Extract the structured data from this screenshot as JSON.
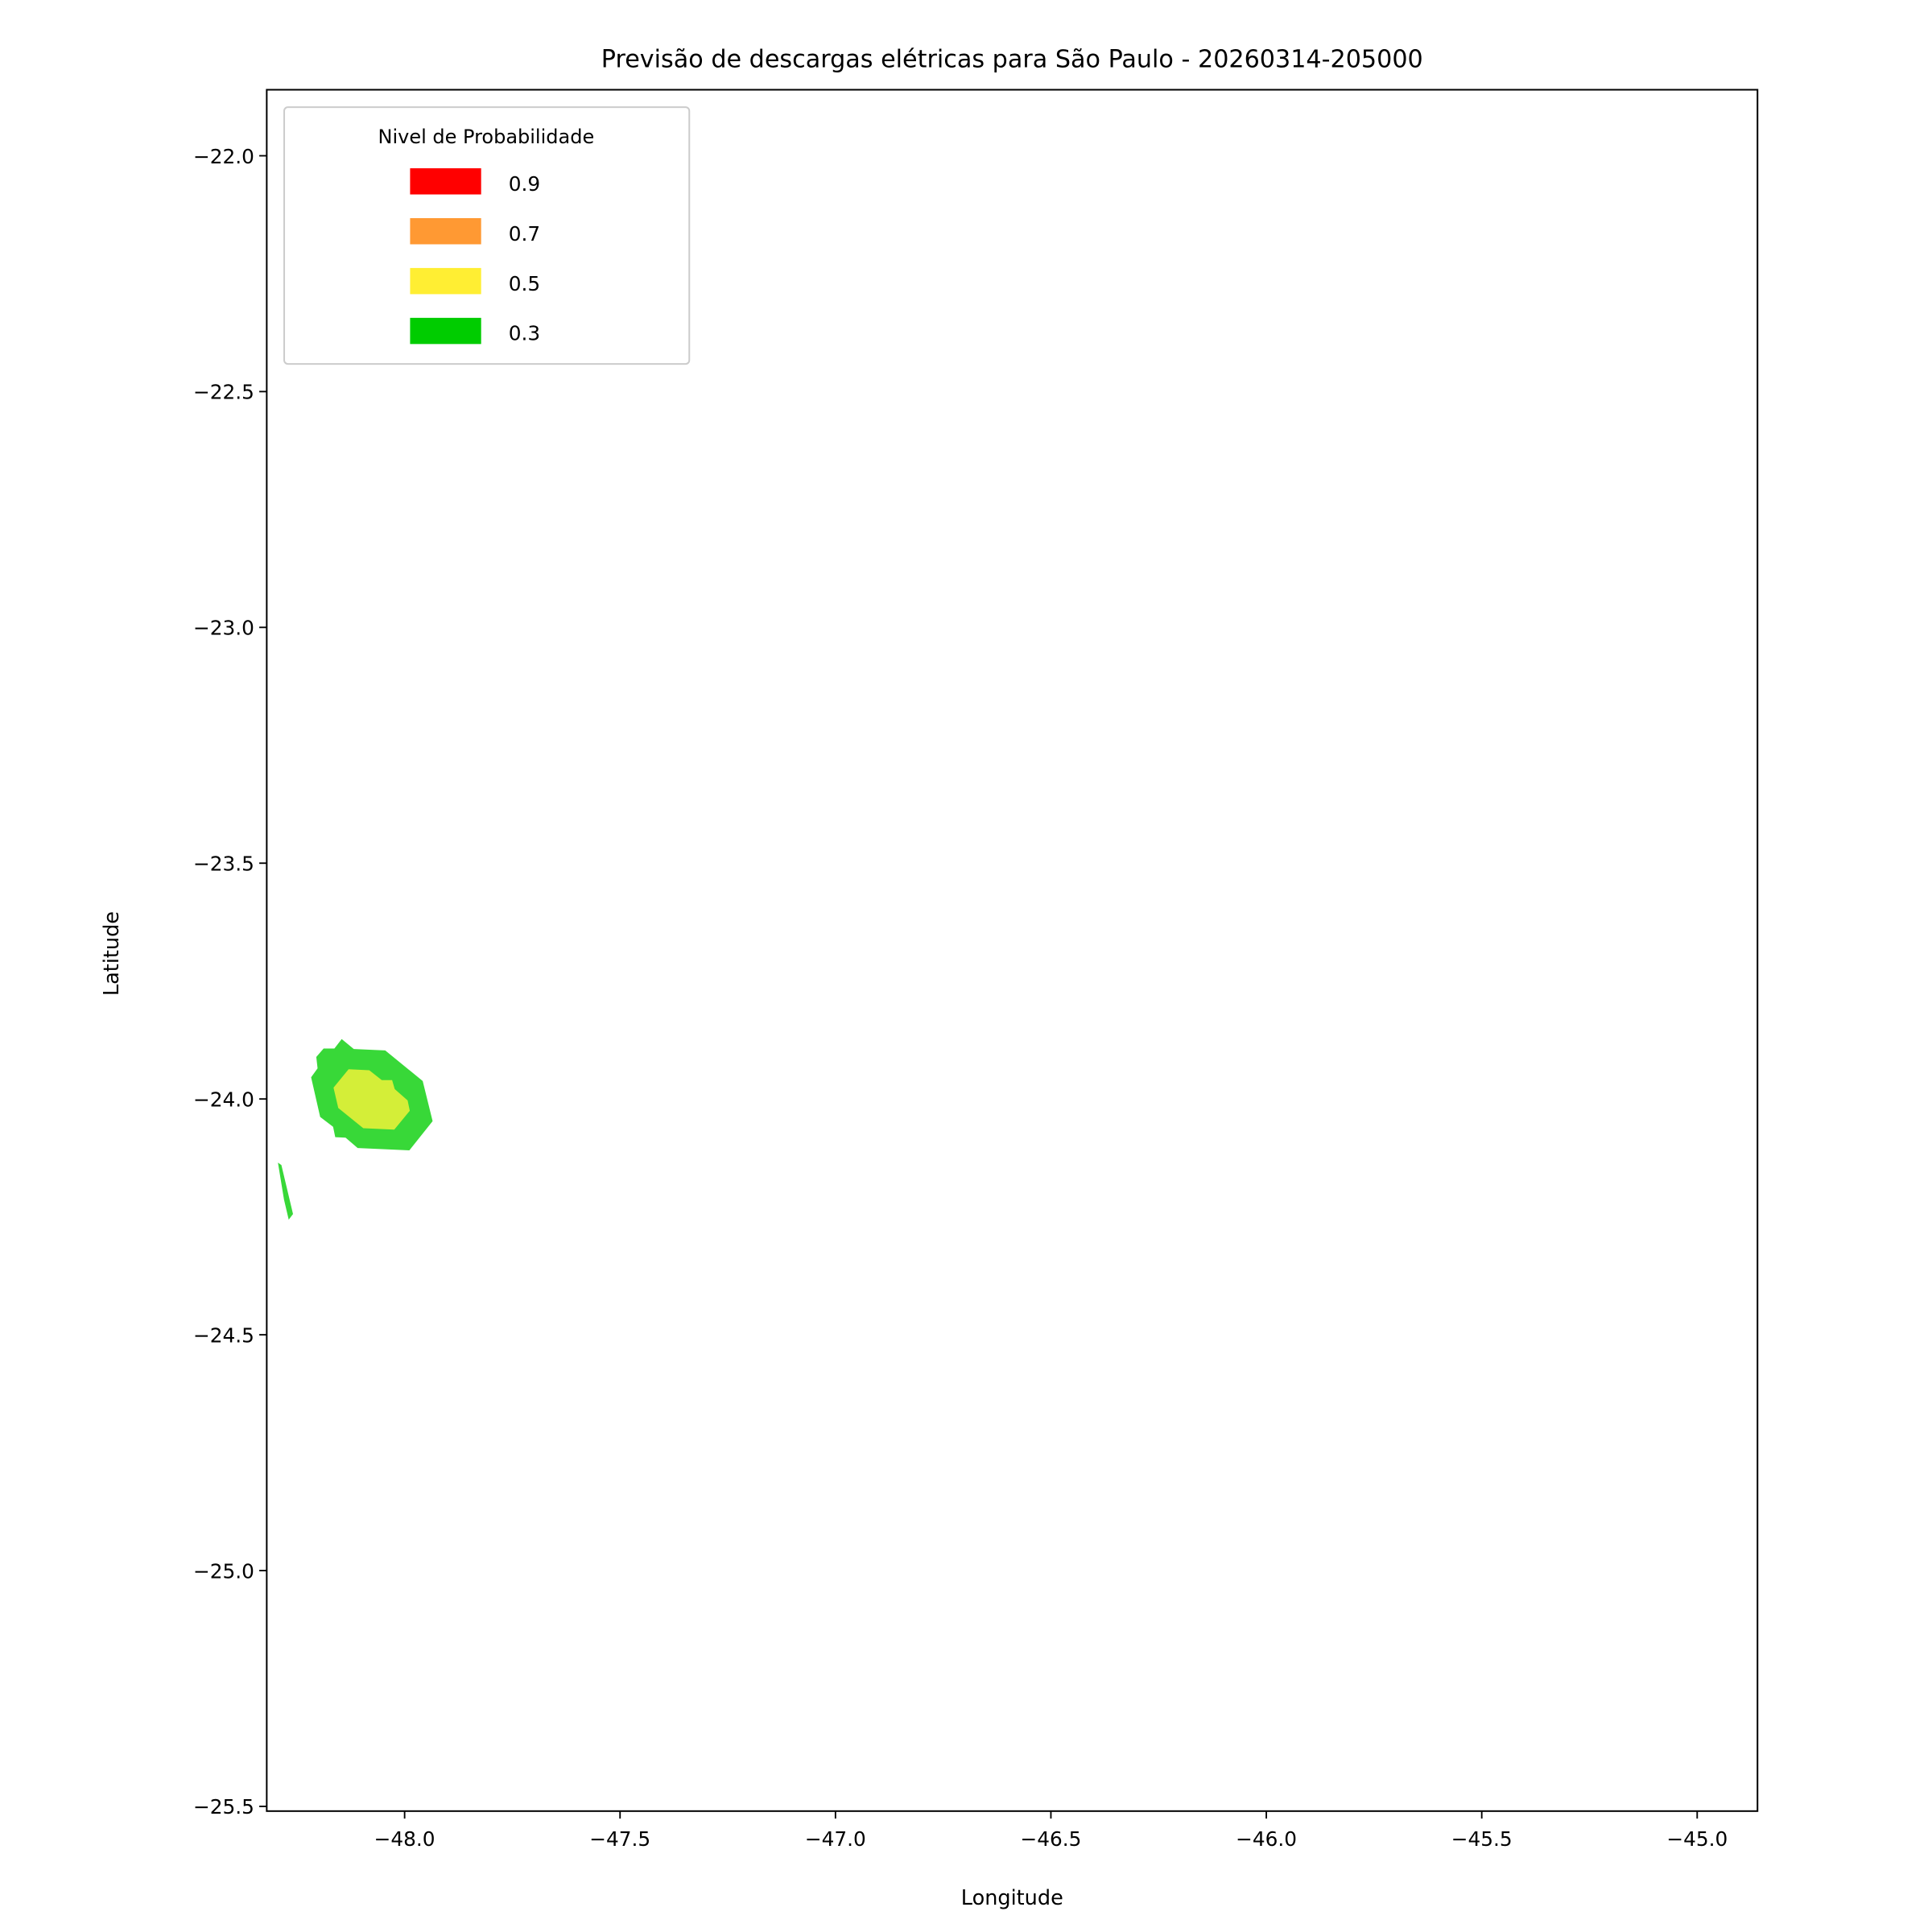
{
  "chart_data": {
    "type": "contour",
    "title": "Previsão de descargas elétricas para São Paulo - 20260314-205000",
    "xlabel": "Longitude",
    "ylabel": "Latitude",
    "xlim": [
      -48.32,
      -44.86
    ],
    "ylim": [
      -25.51,
      -21.86
    ],
    "xticks": [
      -48.0,
      -47.5,
      -47.0,
      -46.5,
      -46.0,
      -45.5,
      -45.0
    ],
    "xtick_labels": [
      "−48.0",
      "−47.5",
      "−47.0",
      "−46.5",
      "−46.0",
      "−45.5",
      "−45.0"
    ],
    "yticks": [
      -22.0,
      -22.5,
      -23.0,
      -23.5,
      -24.0,
      -24.5,
      -25.0,
      -25.5
    ],
    "ytick_labels": [
      "−22.0",
      "−22.5",
      "−23.0",
      "−23.5",
      "−24.0",
      "−24.5",
      "−25.0",
      "−25.5"
    ],
    "grid": false,
    "legend": {
      "title": "Nivel de Probabilidade",
      "placement": "top-left",
      "entries": [
        {
          "label": "0.9",
          "color": "#ff0000"
        },
        {
          "label": "0.7",
          "color": "#ff9933"
        },
        {
          "label": "0.5",
          "color": "#ffee33"
        },
        {
          "label": "0.3",
          "color": "#00cc00"
        }
      ]
    },
    "regions": [
      {
        "level": "0.3",
        "color": "#38d838",
        "points": [
          [
            -48.146,
            -23.873
          ],
          [
            -48.118,
            -23.894
          ],
          [
            -48.045,
            -23.897
          ],
          [
            -47.958,
            -23.962
          ],
          [
            -47.935,
            -24.047
          ],
          [
            -47.989,
            -24.109
          ],
          [
            -48.109,
            -24.104
          ],
          [
            -48.137,
            -24.082
          ],
          [
            -48.161,
            -24.081
          ],
          [
            -48.166,
            -24.059
          ],
          [
            -48.196,
            -24.038
          ],
          [
            -48.217,
            -23.954
          ],
          [
            -48.202,
            -23.935
          ],
          [
            -48.205,
            -23.911
          ],
          [
            -48.188,
            -23.893
          ],
          [
            -48.163,
            -23.893
          ]
        ]
      },
      {
        "level": "0.5",
        "color": "#d4ee38",
        "points": [
          [
            -48.13,
            -23.937
          ],
          [
            -48.082,
            -23.939
          ],
          [
            -48.053,
            -23.96
          ],
          [
            -48.029,
            -23.96
          ],
          [
            -48.023,
            -23.979
          ],
          [
            -47.993,
            -24.003
          ],
          [
            -47.988,
            -24.025
          ],
          [
            -48.024,
            -24.065
          ],
          [
            -48.096,
            -24.062
          ],
          [
            -48.154,
            -24.019
          ],
          [
            -48.165,
            -23.976
          ]
        ]
      },
      {
        "level": "0.3",
        "color": "#38d838",
        "points": [
          [
            -48.294,
            -24.135
          ],
          [
            -48.286,
            -24.14
          ],
          [
            -48.259,
            -24.244
          ],
          [
            -48.269,
            -24.256
          ],
          [
            -48.28,
            -24.213
          ]
        ]
      }
    ]
  }
}
